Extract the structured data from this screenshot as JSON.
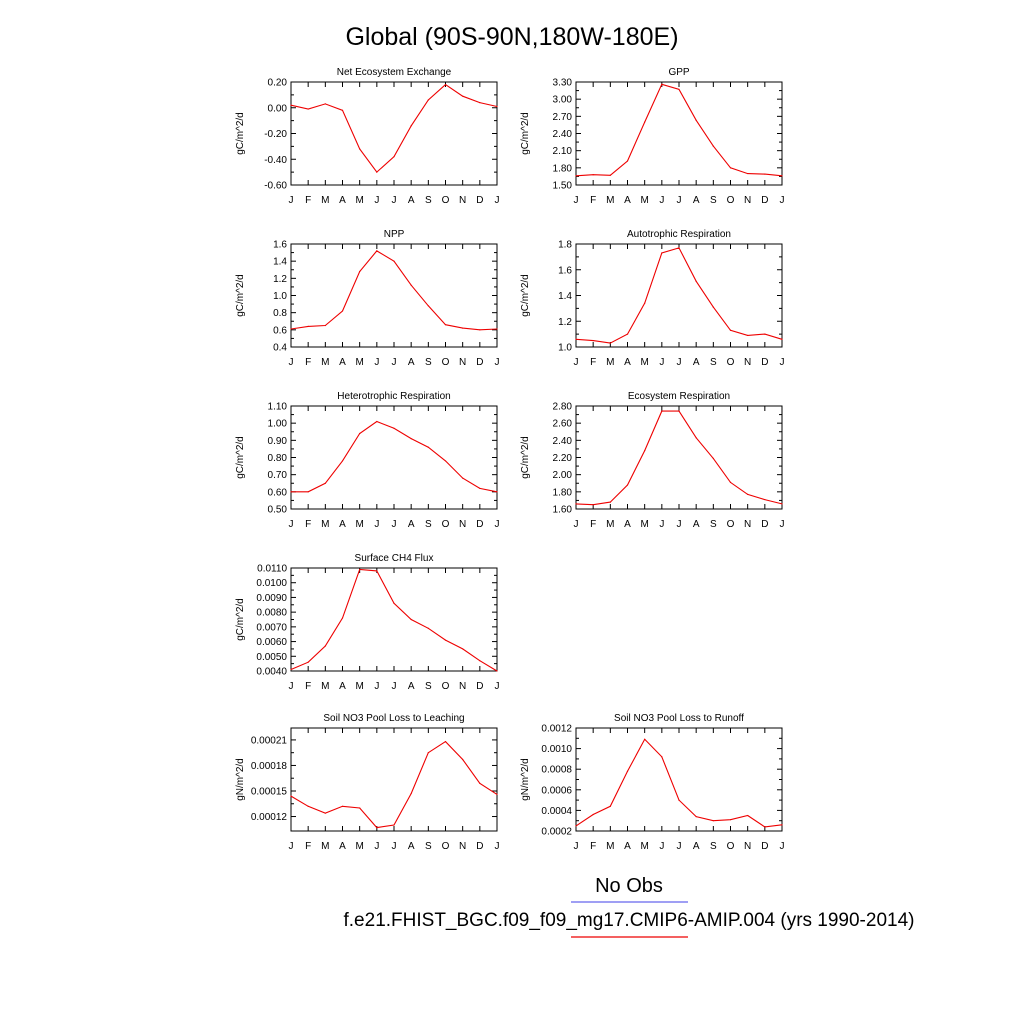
{
  "page_title": "Global (90S-90N,180W-180E)",
  "legend": {
    "obs_label": "No Obs",
    "obs_color": "#6666ee",
    "model_label": "f.e21.FHIST_BGC.f09_f09_mg17.CMIP6-AMIP.004 (yrs 1990-2014)",
    "model_color": "#ee0000"
  },
  "months": [
    "J",
    "F",
    "M",
    "A",
    "M",
    "J",
    "J",
    "A",
    "S",
    "O",
    "N",
    "D",
    "J"
  ],
  "chart_data": [
    {
      "type": "line",
      "title": "Net Ecosystem Exchange",
      "ylabel": "gC/m^2/d",
      "ylim": [
        -0.6,
        0.2
      ],
      "yticks": [
        -0.6,
        -0.4,
        -0.2,
        0.0,
        0.2
      ],
      "ytick_labels": [
        "-0.60",
        "-0.40",
        "-0.20",
        "0.00",
        "0.20"
      ],
      "series": [
        {
          "values": [
            0.02,
            -0.01,
            0.03,
            -0.02,
            -0.32,
            -0.5,
            -0.38,
            -0.14,
            0.06,
            0.18,
            0.09,
            0.04,
            0.01
          ]
        }
      ]
    },
    {
      "type": "line",
      "title": "GPP",
      "ylabel": "gC/m^2/d",
      "ylim": [
        1.5,
        3.3
      ],
      "yticks": [
        1.5,
        1.8,
        2.1,
        2.4,
        2.7,
        3.0,
        3.3
      ],
      "ytick_labels": [
        "1.50",
        "1.80",
        "2.10",
        "2.40",
        "2.70",
        "3.00",
        "3.30"
      ],
      "series": [
        {
          "values": [
            1.66,
            1.68,
            1.67,
            1.92,
            2.6,
            3.26,
            3.17,
            2.63,
            2.18,
            1.8,
            1.7,
            1.69,
            1.66
          ]
        }
      ]
    },
    {
      "type": "line",
      "title": "NPP",
      "ylabel": "gC/m^2/d",
      "ylim": [
        0.4,
        1.6
      ],
      "yticks": [
        0.4,
        0.6,
        0.8,
        1.0,
        1.2,
        1.4,
        1.6
      ],
      "ytick_labels": [
        "0.4",
        "0.6",
        "0.8",
        "1.0",
        "1.2",
        "1.4",
        "1.6"
      ],
      "series": [
        {
          "values": [
            0.61,
            0.64,
            0.65,
            0.82,
            1.28,
            1.52,
            1.4,
            1.12,
            0.88,
            0.66,
            0.62,
            0.6,
            0.61
          ]
        }
      ]
    },
    {
      "type": "line",
      "title": "Autotrophic Respiration",
      "ylabel": "gC/m^2/d",
      "ylim": [
        1.0,
        1.8
      ],
      "yticks": [
        1.0,
        1.2,
        1.4,
        1.6,
        1.8
      ],
      "ytick_labels": [
        "1.0",
        "1.2",
        "1.4",
        "1.6",
        "1.8"
      ],
      "series": [
        {
          "values": [
            1.06,
            1.05,
            1.03,
            1.1,
            1.34,
            1.73,
            1.77,
            1.51,
            1.31,
            1.13,
            1.09,
            1.1,
            1.06
          ]
        }
      ]
    },
    {
      "type": "line",
      "title": "Heterotrophic Respiration",
      "ylabel": "gC/m^2/d",
      "ylim": [
        0.5,
        1.1
      ],
      "yticks": [
        0.5,
        0.6,
        0.7,
        0.8,
        0.9,
        1.0,
        1.1
      ],
      "ytick_labels": [
        "0.50",
        "0.60",
        "0.70",
        "0.80",
        "0.90",
        "1.00",
        "1.10"
      ],
      "series": [
        {
          "values": [
            0.6,
            0.6,
            0.65,
            0.78,
            0.94,
            1.01,
            0.97,
            0.91,
            0.86,
            0.78,
            0.68,
            0.62,
            0.6
          ]
        }
      ]
    },
    {
      "type": "line",
      "title": "Ecosystem Respiration",
      "ylabel": "gC/m^2/d",
      "ylim": [
        1.6,
        2.8
      ],
      "yticks": [
        1.6,
        1.8,
        2.0,
        2.2,
        2.4,
        2.6,
        2.8
      ],
      "ytick_labels": [
        "1.60",
        "1.80",
        "2.00",
        "2.20",
        "2.40",
        "2.60",
        "2.80"
      ],
      "series": [
        {
          "values": [
            1.66,
            1.65,
            1.68,
            1.88,
            2.28,
            2.74,
            2.74,
            2.43,
            2.19,
            1.91,
            1.77,
            1.71,
            1.66
          ]
        }
      ]
    },
    {
      "type": "line",
      "title": "Surface CH4 Flux",
      "ylabel": "gC/m^2/d",
      "ylim": [
        0.004,
        0.011
      ],
      "yticks": [
        0.004,
        0.005,
        0.006,
        0.007,
        0.008,
        0.009,
        0.01,
        0.011
      ],
      "ytick_labels": [
        "0.0040",
        "0.0050",
        "0.0060",
        "0.0070",
        "0.0080",
        "0.0090",
        "0.0100",
        "0.0110"
      ],
      "series": [
        {
          "values": [
            0.0041,
            0.0046,
            0.0057,
            0.0076,
            0.0109,
            0.0108,
            0.0086,
            0.0075,
            0.0069,
            0.0061,
            0.0055,
            0.0047,
            0.004
          ]
        }
      ]
    },
    {
      "type": "line",
      "title": "Soil NO3 Pool Loss to Leaching",
      "ylabel": "gN/m^2/d",
      "ylim": [
        0.000103,
        0.000224
      ],
      "yticks": [
        0.00012,
        0.00015,
        0.00018,
        0.00021
      ],
      "ytick_labels": [
        "0.00012",
        "0.00015",
        "0.00018",
        "0.00021"
      ],
      "series": [
        {
          "values": [
            0.000144,
            0.000132,
            0.000124,
            0.000132,
            0.00013,
            0.000107,
            0.00011,
            0.000147,
            0.000195,
            0.000208,
            0.000187,
            0.000159,
            0.000146
          ]
        }
      ]
    },
    {
      "type": "line",
      "title": "Soil NO3 Pool Loss to Runoff",
      "ylabel": "gN/m^2/d",
      "ylim": [
        0.0002,
        0.0012
      ],
      "yticks": [
        0.0002,
        0.0004,
        0.0006,
        0.0008,
        0.001,
        0.0012
      ],
      "ytick_labels": [
        "0.0002",
        "0.0004",
        "0.0006",
        "0.0008",
        "0.0010",
        "0.0012"
      ],
      "series": [
        {
          "values": [
            0.00025,
            0.00036,
            0.00044,
            0.00078,
            0.00109,
            0.00092,
            0.0005,
            0.00034,
            0.0003,
            0.00031,
            0.00035,
            0.00024,
            0.00026
          ]
        }
      ]
    }
  ]
}
